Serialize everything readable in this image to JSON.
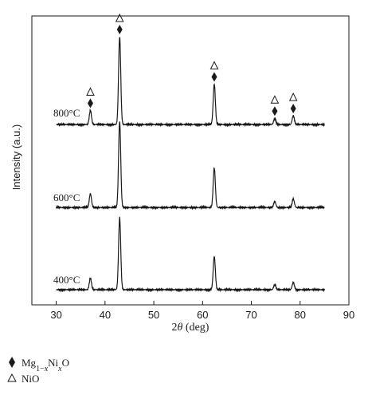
{
  "chart_data": {
    "type": "line",
    "xlabel_main": "2",
    "xlabel_italic": "θ",
    "xlabel_tail": " (deg)",
    "ylabel": "Intensity (a.u.)",
    "xlim": [
      25,
      90
    ],
    "xticks": [
      30,
      40,
      50,
      60,
      70,
      80,
      90
    ],
    "yticks_shown": false,
    "peaks": [
      {
        "x": 37.0,
        "height": 0.16
      },
      {
        "x": 43.0,
        "height": 1.0
      },
      {
        "x": 62.4,
        "height": 0.46
      },
      {
        "x": 74.8,
        "height": 0.07
      },
      {
        "x": 78.6,
        "height": 0.1
      }
    ],
    "series": [
      {
        "name": "800°C",
        "intensity_scale": 1.0,
        "offset": 2
      },
      {
        "name": "600°C",
        "intensity_scale": 0.98,
        "offset": 1
      },
      {
        "name": "400°C",
        "intensity_scale": 0.82,
        "offset": 0
      }
    ],
    "markers": [
      {
        "x": 37.0,
        "symbols": [
          "triangle",
          "diamond"
        ]
      },
      {
        "x": 43.0,
        "symbols": [
          "triangle",
          "diamond"
        ]
      },
      {
        "x": 62.4,
        "symbols": [
          "triangle",
          "diamond"
        ]
      },
      {
        "x": 74.8,
        "symbols": [
          "triangle",
          "diamond"
        ]
      },
      {
        "x": 78.6,
        "symbols": [
          "triangle",
          "diamond"
        ]
      }
    ],
    "legend": {
      "placement": "below",
      "entries": [
        {
          "symbol": "diamond",
          "label_parts": [
            {
              "text": "Mg",
              "sub": false,
              "italic": false
            },
            {
              "text": "1−",
              "sub": true,
              "italic": false
            },
            {
              "text": "x",
              "sub": true,
              "italic": true
            },
            {
              "text": "Ni",
              "sub": false,
              "italic": false
            },
            {
              "text": "x",
              "sub": true,
              "italic": true
            },
            {
              "text": "O",
              "sub": false,
              "italic": false
            }
          ]
        },
        {
          "symbol": "triangle",
          "label_parts": [
            {
              "text": "NiO",
              "sub": false,
              "italic": false
            }
          ]
        }
      ]
    },
    "line_color": "#1a1a1a"
  }
}
